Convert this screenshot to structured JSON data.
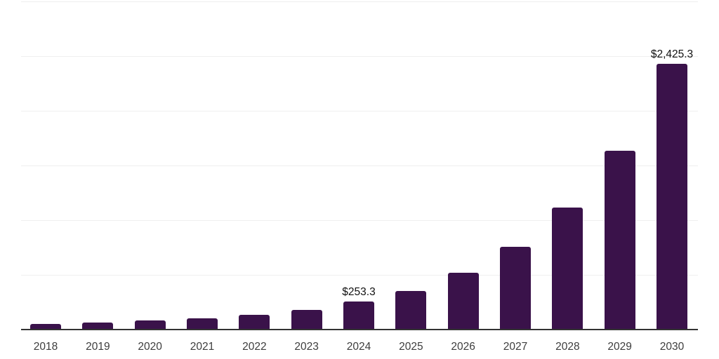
{
  "chart_data": {
    "type": "bar",
    "title": "",
    "xlabel": "",
    "ylabel": "",
    "categories": [
      "2018",
      "2019",
      "2020",
      "2021",
      "2022",
      "2023",
      "2024",
      "2025",
      "2026",
      "2027",
      "2028",
      "2029",
      "2030"
    ],
    "values": [
      48,
      61,
      80,
      99,
      131,
      176,
      253.3,
      348,
      515,
      751,
      1109,
      1633,
      2425.3
    ],
    "point_labels": [
      "",
      "",
      "",
      "",
      "",
      "",
      "$253.3",
      "",
      "",
      "",
      "",
      "",
      "$2,425.3"
    ],
    "labeled_points": [
      {
        "category": "2024",
        "label": "$253.3",
        "value": 253.3
      },
      {
        "category": "2030",
        "label": "$2,425.3",
        "value": 2425.3
      }
    ],
    "ylim": [
      0,
      3000
    ],
    "gridline_step": 500,
    "grid": true,
    "legend": false,
    "colors": {
      "bar": "#3A124A",
      "axis": "#333333",
      "gridline": "#efefef",
      "tick_label": "#3d3d3d",
      "data_label": "#111111",
      "background": "#ffffff"
    }
  }
}
